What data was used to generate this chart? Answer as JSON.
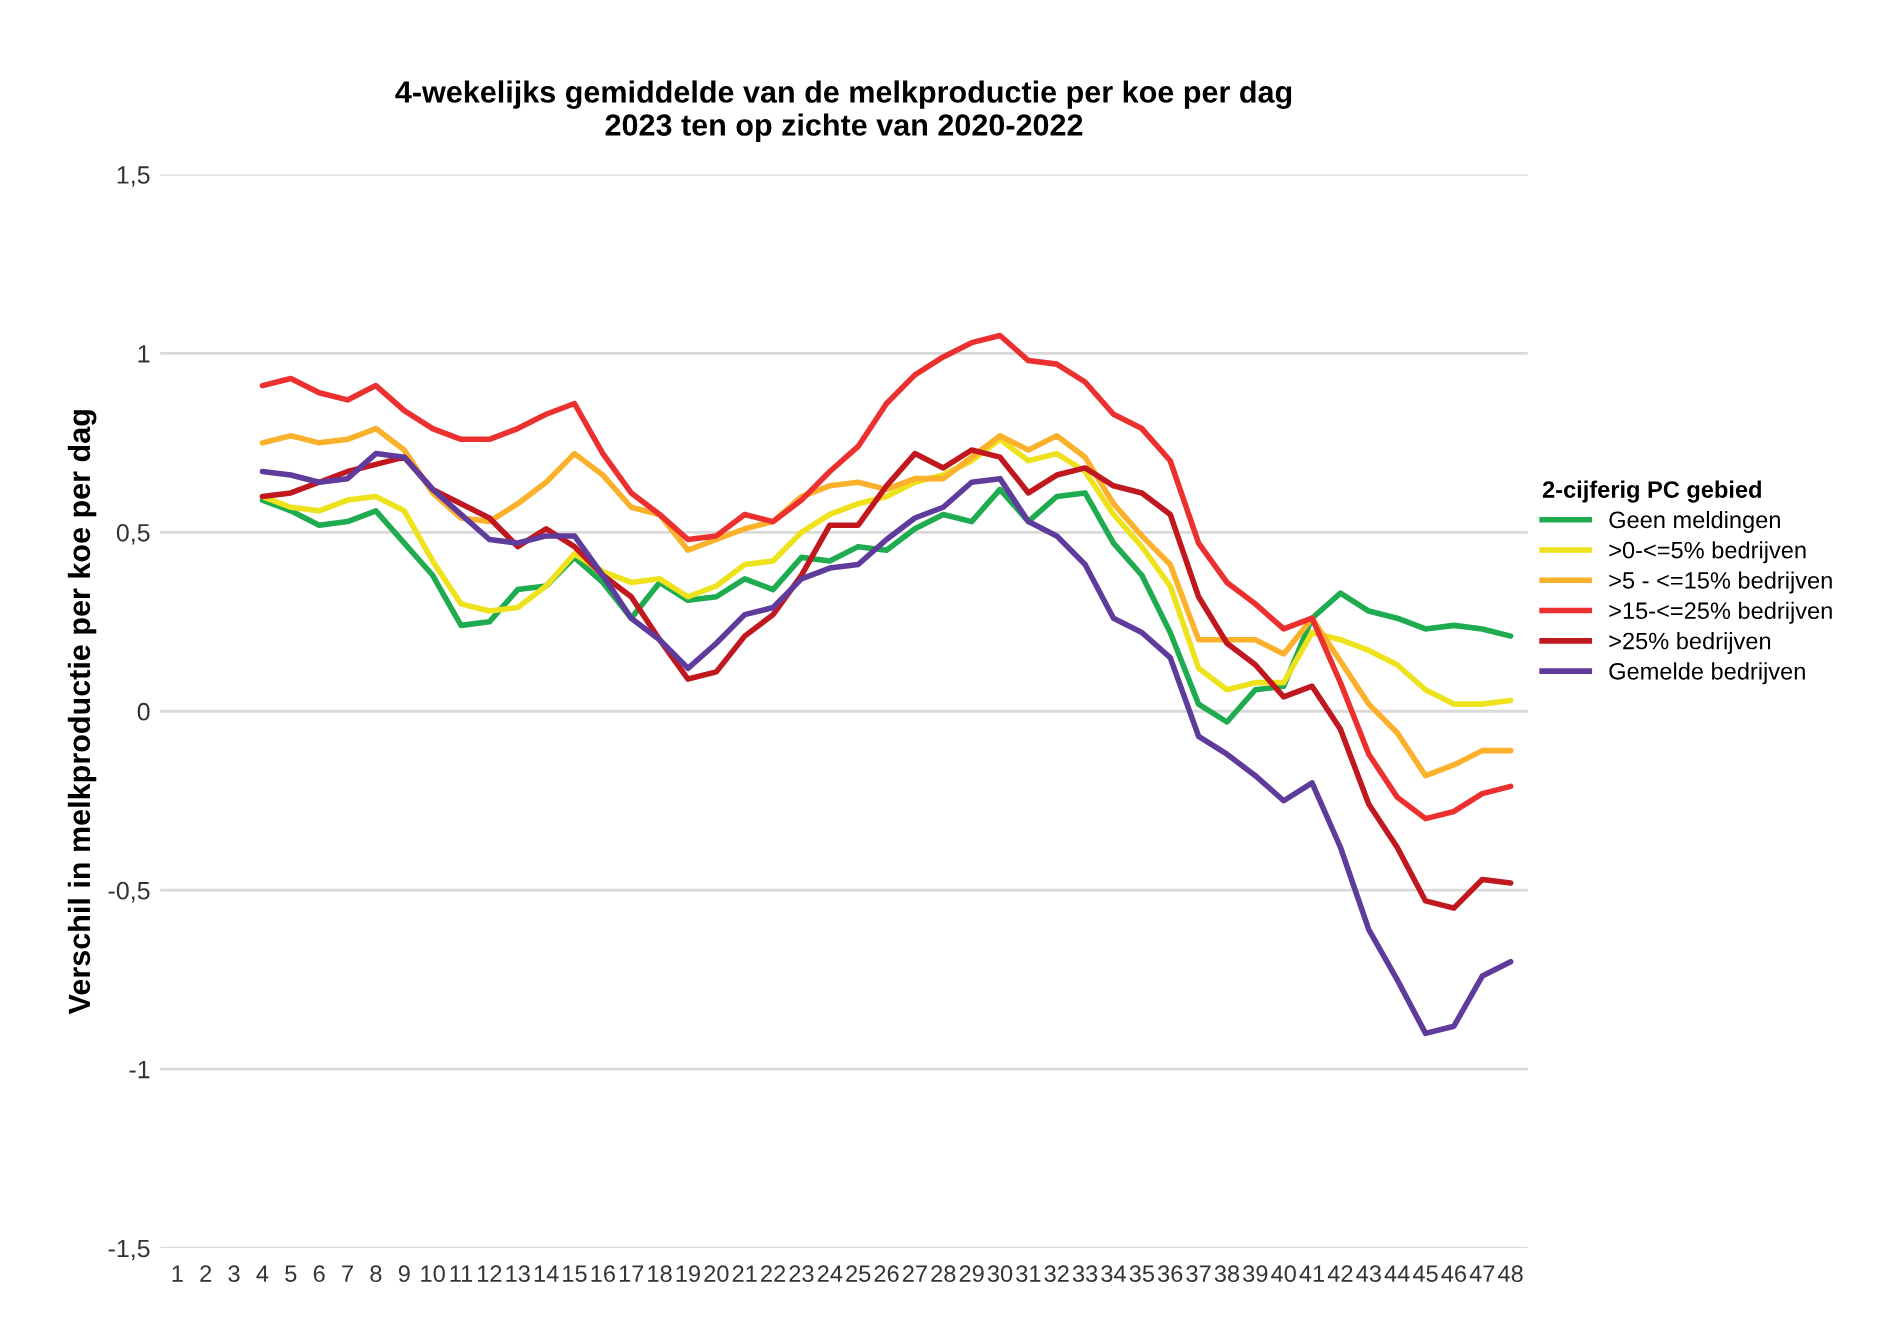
{
  "chart_data": {
    "type": "line",
    "title": "4-wekelijks gemiddelde van de melkproductie per koe per dag\n2023 ten op zichte van 2020-2022",
    "ylabel": "Verschil in melkproductie per koe per dag",
    "legend_title": "2-cijferig PC gebied",
    "categories": [
      "1",
      "2",
      "3",
      "4",
      "5",
      "6",
      "7",
      "8",
      "9",
      "10",
      "11",
      "12",
      "13",
      "14",
      "15",
      "16",
      "17",
      "18",
      "19",
      "20",
      "21",
      "22",
      "23",
      "24",
      "25",
      "26",
      "27",
      "28",
      "29",
      "30",
      "31",
      "32",
      "33",
      "34",
      "35",
      "36",
      "37",
      "38",
      "39",
      "40",
      "41",
      "42",
      "43",
      "44",
      "45",
      "46",
      "47",
      "48"
    ],
    "ylim": [
      -1.5,
      1.5
    ],
    "yticks": [
      {
        "value": -1.5,
        "label": "-1,5"
      },
      -1,
      {
        "value": -0.5,
        "label": "-0,5"
      },
      0,
      {
        "value": 0.5,
        "label": "0,5"
      },
      1,
      {
        "value": 1.5,
        "label": "1,5"
      }
    ],
    "grid": "y",
    "legend": "right",
    "marker": "none",
    "line_style": "solid",
    "series": [
      {
        "name": "Geen meldingen",
        "color": "#1fab4f",
        "values": [
          null,
          null,
          null,
          0.59,
          0.56,
          0.52,
          0.53,
          0.56,
          0.47,
          0.38,
          0.24,
          0.25,
          0.34,
          0.35,
          0.43,
          0.36,
          0.26,
          0.36,
          0.31,
          0.32,
          0.37,
          0.34,
          0.43,
          0.42,
          0.46,
          0.45,
          0.51,
          0.55,
          0.53,
          0.62,
          0.53,
          0.6,
          0.61,
          0.47,
          0.38,
          0.22,
          0.02,
          -0.03,
          0.06,
          0.07,
          0.26,
          0.33,
          0.28,
          0.26,
          0.23,
          0.24,
          0.23,
          0.21
        ]
      },
      {
        "name": ">0-<=5% bedrijven",
        "color": "#ede21b",
        "values": [
          null,
          null,
          null,
          0.6,
          0.57,
          0.56,
          0.59,
          0.6,
          0.56,
          0.42,
          0.3,
          0.28,
          0.29,
          0.35,
          0.44,
          0.39,
          0.36,
          0.37,
          0.32,
          0.35,
          0.41,
          0.42,
          0.5,
          0.55,
          0.58,
          0.6,
          0.64,
          0.66,
          0.7,
          0.76,
          0.7,
          0.72,
          0.67,
          0.55,
          0.46,
          0.35,
          0.12,
          0.06,
          0.08,
          0.08,
          0.22,
          0.2,
          0.17,
          0.13,
          0.06,
          0.02,
          0.02,
          0.03
        ]
      },
      {
        "name": ">5 - <=15% bedrijven",
        "color": "#fbb12b",
        "values": [
          null,
          null,
          null,
          0.75,
          0.77,
          0.75,
          0.76,
          0.79,
          0.73,
          0.61,
          0.54,
          0.53,
          0.58,
          0.64,
          0.72,
          0.66,
          0.57,
          0.55,
          0.45,
          0.48,
          0.51,
          0.53,
          0.6,
          0.63,
          0.64,
          0.62,
          0.65,
          0.65,
          0.71,
          0.77,
          0.73,
          0.77,
          0.71,
          0.58,
          0.49,
          0.41,
          0.2,
          0.2,
          0.2,
          0.16,
          0.26,
          0.14,
          0.02,
          -0.06,
          -0.18,
          -0.15,
          -0.11,
          -0.11
        ]
      },
      {
        "name": ">15-<=25% bedrijven",
        "color": "#ec2f2f",
        "values": [
          null,
          null,
          null,
          0.91,
          0.93,
          0.89,
          0.87,
          0.91,
          0.84,
          0.79,
          0.76,
          0.76,
          0.79,
          0.83,
          0.86,
          0.72,
          0.61,
          0.55,
          0.48,
          0.49,
          0.55,
          0.53,
          0.59,
          0.67,
          0.74,
          0.86,
          0.94,
          0.99,
          1.03,
          1.05,
          0.98,
          0.97,
          0.92,
          0.83,
          0.79,
          0.7,
          0.47,
          0.36,
          0.3,
          0.23,
          0.26,
          0.08,
          -0.12,
          -0.24,
          -0.3,
          -0.28,
          -0.23,
          -0.21
        ]
      },
      {
        "name": ">25% bedrijven",
        "color": "#c0181e",
        "values": [
          null,
          null,
          null,
          0.6,
          0.61,
          0.64,
          0.67,
          0.69,
          0.71,
          0.62,
          0.58,
          0.54,
          0.46,
          0.51,
          0.46,
          0.38,
          0.32,
          0.2,
          0.09,
          0.11,
          0.21,
          0.27,
          0.38,
          0.52,
          0.52,
          0.63,
          0.72,
          0.68,
          0.73,
          0.71,
          0.61,
          0.66,
          0.68,
          0.63,
          0.61,
          0.55,
          0.32,
          0.19,
          0.13,
          0.04,
          0.07,
          -0.05,
          -0.26,
          -0.38,
          -0.53,
          -0.55,
          -0.47,
          -0.48
        ]
      },
      {
        "name": "Gemelde bedrijven",
        "color": "#5f3b9c",
        "values": [
          null,
          null,
          null,
          0.67,
          0.66,
          0.64,
          0.65,
          0.72,
          0.71,
          0.62,
          0.55,
          0.48,
          0.47,
          0.49,
          0.49,
          0.38,
          0.26,
          0.2,
          0.12,
          0.19,
          0.27,
          0.29,
          0.37,
          0.4,
          0.41,
          0.48,
          0.54,
          0.57,
          0.64,
          0.65,
          0.53,
          0.49,
          0.41,
          0.26,
          0.22,
          0.15,
          -0.07,
          -0.12,
          -0.18,
          -0.25,
          -0.2,
          -0.38,
          -0.61,
          -0.75,
          -0.9,
          -0.88,
          -0.74,
          -0.7
        ]
      }
    ]
  }
}
